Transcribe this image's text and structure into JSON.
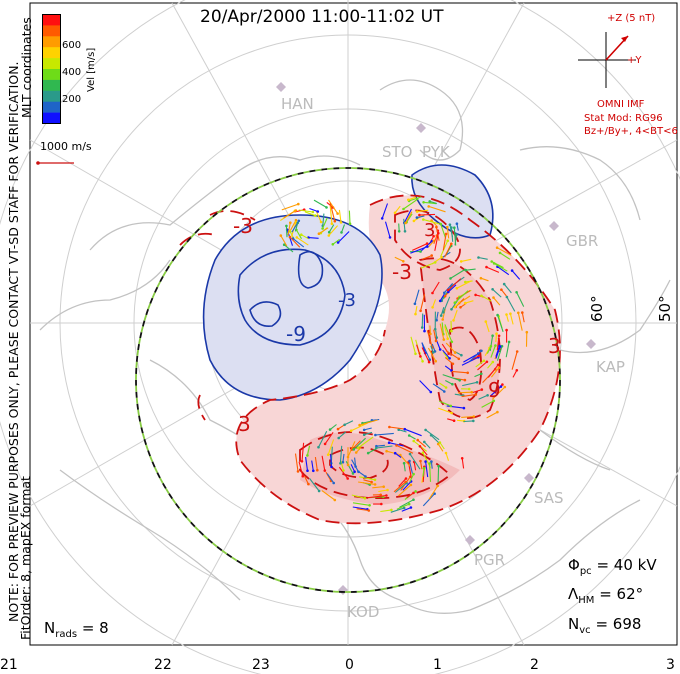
{
  "title": "20/Apr/2000 11:00-11:02 UT",
  "side_note": "NOTE: FOR PREVIEW PURPOSES ONLY, PLEASE CONTACT VT-SD STAFF FOR VERIFICATION.",
  "fit_order": "FitOrder: 8, mapEX format",
  "coordinates": "MLT coordinates",
  "colorbar": {
    "label": "Vel [m/s]",
    "ticks": [
      "600",
      "400",
      "200"
    ],
    "colors": [
      "#ff1010",
      "#ff5a00",
      "#ff9c00",
      "#ffd200",
      "#c8e800",
      "#6edc18",
      "#30b850",
      "#2a9a8a",
      "#1f64c8",
      "#1010ff"
    ]
  },
  "velocity_scale": "1000 m/s",
  "imf": {
    "z_label": "+Z (5 nT)",
    "y_label": "+Y",
    "source": "OMNI IMF",
    "model": "Stat Mod: RG96",
    "condition": "Bz+/By+, 4<BT<6"
  },
  "stations": [
    "HAN",
    "STO",
    "PYK",
    "GBR",
    "KAP",
    "SAS",
    "PGR",
    "KOD"
  ],
  "latitude_labels": [
    "60°",
    "50°"
  ],
  "contour_labels": [
    "-3",
    "-9",
    "3",
    "-3",
    "3",
    "9",
    "3",
    "-3"
  ],
  "mlt_labels": [
    "21",
    "22",
    "23",
    "0",
    "1",
    "2",
    "3"
  ],
  "stats": {
    "phi_symbol": "Φ",
    "phi_sub": "pc",
    "phi_value": "= 40 kV",
    "lambda_symbol": "Λ",
    "lambda_sub": "HM",
    "lambda_value": "= 62°",
    "nvc_symbol": "N",
    "nvc_sub": "vc",
    "nvc_value": "= 698",
    "nrads_symbol": "N",
    "nrads_sub": "rads",
    "nrads_value": "= 8"
  },
  "colors": {
    "positive_contour": "#cc1010",
    "negative_contour": "#1030a0",
    "positive_fill": "#f7cccc",
    "negative_fill": "#d8daf0",
    "coastline": "#c8c8c8",
    "grid": "#c8c8c8",
    "boundary_dash_green": "#88cc44",
    "imf_color": "#d00000"
  }
}
